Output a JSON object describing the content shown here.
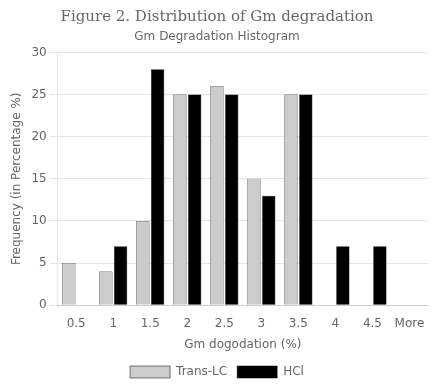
{
  "chart_data": {
    "type": "bar",
    "title": "Figure 2. Distribution of Gm degradation",
    "subtitle": "Gm Degradation Histogram",
    "x_label": "Gm dogodation (%)",
    "y_label": "Frequency (in Percentage %)",
    "categories": [
      "0.5",
      "1",
      "1.5",
      "2",
      "2.5",
      "3",
      "3.5",
      "4",
      "4.5",
      "More"
    ],
    "series": [
      {
        "name": "Trans-LC",
        "color": "#cccccc",
        "values": [
          5,
          4,
          10,
          25,
          26,
          15,
          25,
          0,
          0,
          0
        ]
      },
      {
        "name": "HCl",
        "color": "#000000",
        "values": [
          0,
          7,
          28,
          25,
          25,
          13,
          25,
          7,
          7,
          0
        ]
      }
    ],
    "ylim": [
      0,
      30
    ],
    "yticks": [
      0,
      5,
      10,
      15,
      20,
      25,
      30
    ],
    "grid": true,
    "legend": "bottom"
  }
}
